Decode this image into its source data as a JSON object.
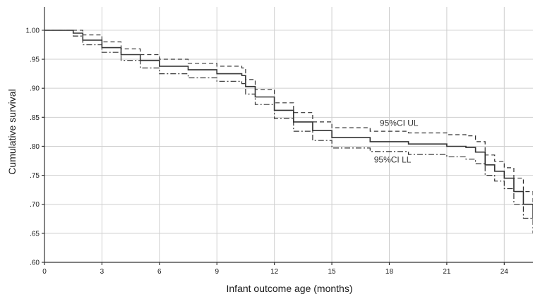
{
  "chart_data": {
    "type": "line",
    "title": "",
    "xlabel": "Infant outcome age (months)",
    "ylabel": "Cumulative survival",
    "xlim": [
      0,
      25.5
    ],
    "ylim": [
      0.6,
      1.04
    ],
    "grid": true,
    "x_ticks": [
      {
        "value": 0,
        "label": "0"
      },
      {
        "value": 3,
        "label": "3"
      },
      {
        "value": 6,
        "label": "6"
      },
      {
        "value": 9,
        "label": "9"
      },
      {
        "value": 12,
        "label": "12"
      },
      {
        "value": 15,
        "label": "15"
      },
      {
        "value": 18,
        "label": "18"
      },
      {
        "value": 21,
        "label": "21"
      },
      {
        "value": 24,
        "label": "24"
      }
    ],
    "y_ticks": [
      {
        "value": 0.6,
        "label": ".60"
      },
      {
        "value": 0.65,
        "label": ".65"
      },
      {
        "value": 0.7,
        "label": ".70"
      },
      {
        "value": 0.75,
        "label": ".75"
      },
      {
        "value": 0.8,
        "label": ".80"
      },
      {
        "value": 0.85,
        "label": ".85"
      },
      {
        "value": 0.9,
        "label": ".90"
      },
      {
        "value": 0.95,
        "label": ".95"
      },
      {
        "value": 1.0,
        "label": "1.00"
      }
    ],
    "series": [
      {
        "style": "solid",
        "color": "#333333",
        "x": [
          0,
          1.0,
          1.5,
          2.0,
          3.0,
          4.0,
          5.0,
          6.0,
          7.5,
          9.0,
          10.3,
          10.5,
          11.0,
          12.0,
          13.0,
          14.0,
          15.0,
          17.0,
          19.0,
          21.0,
          22.0,
          22.5,
          23.0,
          23.5,
          24.0,
          24.5,
          25.0,
          25.5
        ],
        "y": [
          1.0,
          1.0,
          0.995,
          0.983,
          0.97,
          0.958,
          0.948,
          0.938,
          0.932,
          0.925,
          0.922,
          0.903,
          0.885,
          0.862,
          0.842,
          0.827,
          0.815,
          0.808,
          0.804,
          0.8,
          0.798,
          0.79,
          0.768,
          0.757,
          0.745,
          0.722,
          0.7,
          0.675
        ]
      },
      {
        "label": "95%CI UL",
        "style": "dashed",
        "color": "#333333",
        "x": [
          0,
          1.0,
          1.5,
          2.0,
          3.0,
          4.0,
          5.0,
          6.0,
          7.5,
          9.0,
          10.3,
          10.5,
          11.0,
          12.0,
          13.0,
          14.0,
          15.0,
          17.0,
          19.0,
          21.0,
          22.0,
          22.5,
          23.0,
          23.5,
          24.0,
          24.5,
          25.0,
          25.5
        ],
        "y": [
          1.0,
          1.0,
          1.0,
          0.992,
          0.98,
          0.968,
          0.958,
          0.95,
          0.943,
          0.938,
          0.935,
          0.915,
          0.898,
          0.875,
          0.858,
          0.842,
          0.832,
          0.826,
          0.823,
          0.82,
          0.818,
          0.808,
          0.785,
          0.774,
          0.763,
          0.745,
          0.722,
          0.7
        ]
      },
      {
        "label": "95%CI LL",
        "style": "dashdot",
        "color": "#333333",
        "x": [
          0,
          1.0,
          1.5,
          2.0,
          3.0,
          4.0,
          5.0,
          6.0,
          7.5,
          9.0,
          10.3,
          10.5,
          11.0,
          12.0,
          13.0,
          14.0,
          15.0,
          17.0,
          19.0,
          21.0,
          22.0,
          22.5,
          23.0,
          23.5,
          24.0,
          24.5,
          25.0,
          25.5
        ],
        "y": [
          1.0,
          1.0,
          0.99,
          0.975,
          0.962,
          0.948,
          0.935,
          0.925,
          0.918,
          0.912,
          0.908,
          0.89,
          0.872,
          0.848,
          0.826,
          0.81,
          0.797,
          0.791,
          0.786,
          0.782,
          0.778,
          0.77,
          0.75,
          0.74,
          0.727,
          0.7,
          0.676,
          0.65
        ]
      }
    ],
    "annotations": [
      {
        "text": "95%CI UL",
        "x": 17.5,
        "y": 0.835
      },
      {
        "text": "95%CI LL",
        "x": 17.2,
        "y": 0.772
      }
    ]
  }
}
